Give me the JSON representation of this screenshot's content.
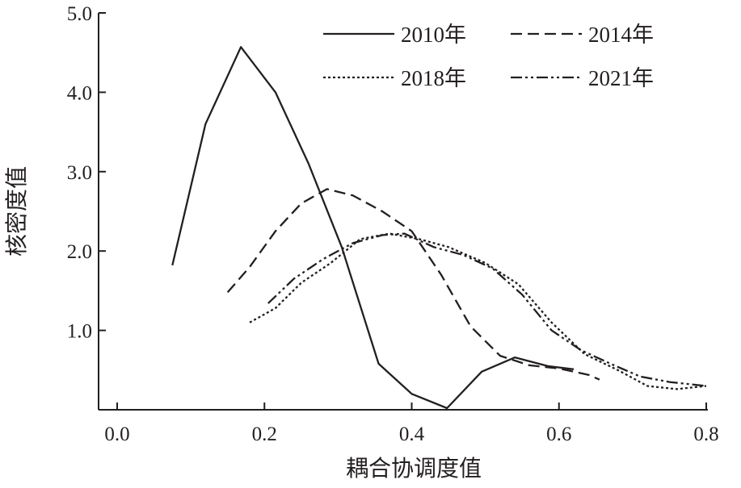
{
  "chart_data": {
    "type": "line",
    "title": "",
    "xlabel": "耦合协调度值",
    "ylabel": "核密度值",
    "xlim": [
      -0.02,
      0.8
    ],
    "ylim": [
      0,
      5.0
    ],
    "x_ticks": [
      0.0,
      0.2,
      0.4,
      0.6,
      0.8
    ],
    "x_tick_labels": [
      "0.0",
      "0.2",
      "0.4",
      "0.6",
      "0.8"
    ],
    "y_ticks": [
      1.0,
      2.0,
      3.0,
      4.0,
      5.0
    ],
    "y_tick_labels": [
      "1.0",
      "2.0",
      "3.0",
      "4.0",
      "5.0"
    ],
    "grid": false,
    "legend_position": "top-right",
    "series": [
      {
        "name": "2010年",
        "style": "solid",
        "color": "#231f20",
        "points": [
          [
            0.075,
            1.82
          ],
          [
            0.12,
            3.6
          ],
          [
            0.168,
            4.57
          ],
          [
            0.215,
            4.0
          ],
          [
            0.26,
            3.1
          ],
          [
            0.305,
            2.05
          ],
          [
            0.355,
            0.58
          ],
          [
            0.4,
            0.2
          ],
          [
            0.448,
            0.02
          ],
          [
            0.495,
            0.48
          ],
          [
            0.54,
            0.66
          ],
          [
            0.585,
            0.55
          ],
          [
            0.62,
            0.51
          ]
        ]
      },
      {
        "name": "2014年",
        "style": "dash",
        "color": "#231f20",
        "points": [
          [
            0.15,
            1.48
          ],
          [
            0.18,
            1.8
          ],
          [
            0.215,
            2.25
          ],
          [
            0.25,
            2.6
          ],
          [
            0.285,
            2.78
          ],
          [
            0.32,
            2.7
          ],
          [
            0.36,
            2.5
          ],
          [
            0.4,
            2.25
          ],
          [
            0.44,
            1.7
          ],
          [
            0.48,
            1.05
          ],
          [
            0.52,
            0.68
          ],
          [
            0.56,
            0.56
          ],
          [
            0.6,
            0.52
          ],
          [
            0.64,
            0.44
          ],
          [
            0.655,
            0.38
          ]
        ]
      },
      {
        "name": "2018年",
        "style": "dot",
        "color": "#231f20",
        "points": [
          [
            0.18,
            1.1
          ],
          [
            0.215,
            1.28
          ],
          [
            0.25,
            1.6
          ],
          [
            0.29,
            1.85
          ],
          [
            0.33,
            2.15
          ],
          [
            0.37,
            2.22
          ],
          [
            0.41,
            2.15
          ],
          [
            0.45,
            2.05
          ],
          [
            0.5,
            1.85
          ],
          [
            0.545,
            1.58
          ],
          [
            0.59,
            1.1
          ],
          [
            0.635,
            0.7
          ],
          [
            0.68,
            0.5
          ],
          [
            0.72,
            0.3
          ],
          [
            0.76,
            0.26
          ],
          [
            0.8,
            0.3
          ]
        ]
      },
      {
        "name": "2021年",
        "style": "dashdot",
        "color": "#231f20",
        "points": [
          [
            0.205,
            1.34
          ],
          [
            0.24,
            1.65
          ],
          [
            0.28,
            1.9
          ],
          [
            0.32,
            2.1
          ],
          [
            0.36,
            2.2
          ],
          [
            0.39,
            2.22
          ],
          [
            0.43,
            2.05
          ],
          [
            0.47,
            1.95
          ],
          [
            0.51,
            1.78
          ],
          [
            0.55,
            1.45
          ],
          [
            0.59,
            1.0
          ],
          [
            0.63,
            0.75
          ],
          [
            0.67,
            0.58
          ],
          [
            0.71,
            0.42
          ],
          [
            0.75,
            0.35
          ],
          [
            0.8,
            0.3
          ]
        ]
      }
    ]
  }
}
